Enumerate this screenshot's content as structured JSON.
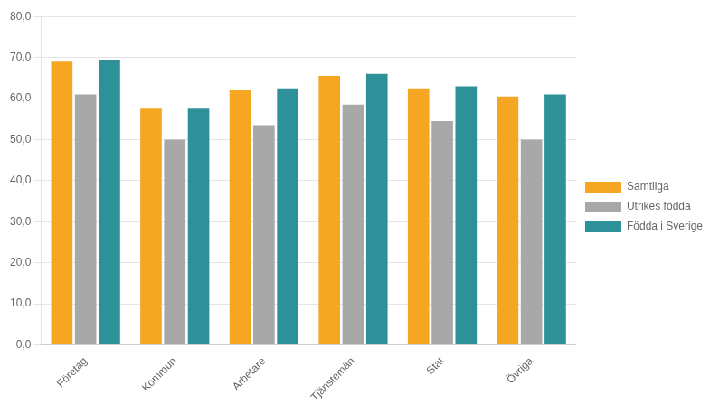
{
  "chart_data": {
    "type": "bar",
    "categories": [
      "Företag",
      "Kommun",
      "Arbetare",
      "Tjänstemän",
      "Stat",
      "Övriga"
    ],
    "series": [
      {
        "name": "Samtliga",
        "color": "#F5A623",
        "values": [
          69.0,
          57.5,
          62.0,
          65.5,
          62.5,
          60.5
        ]
      },
      {
        "name": "Utrikes födda",
        "color": "#A8A8A8",
        "values": [
          61.0,
          50.0,
          53.5,
          58.5,
          54.5,
          50.0
        ]
      },
      {
        "name": "Födda i Sverige",
        "color": "#2E9099",
        "values": [
          69.5,
          57.5,
          62.5,
          66.0,
          63.0,
          61.0
        ]
      }
    ],
    "ylim": [
      0,
      80
    ],
    "yticks": [
      {
        "value": 0,
        "label": "0,0"
      },
      {
        "value": 10,
        "label": "10,0"
      },
      {
        "value": 20,
        "label": "20,0"
      },
      {
        "value": 30,
        "label": "30,0"
      },
      {
        "value": 40,
        "label": "40,0"
      },
      {
        "value": 50,
        "label": "50,0"
      },
      {
        "value": 60,
        "label": "60,0"
      },
      {
        "value": 70,
        "label": "70,0"
      },
      {
        "value": 80,
        "label": "80,0"
      }
    ],
    "grid": true,
    "legend": "right"
  }
}
